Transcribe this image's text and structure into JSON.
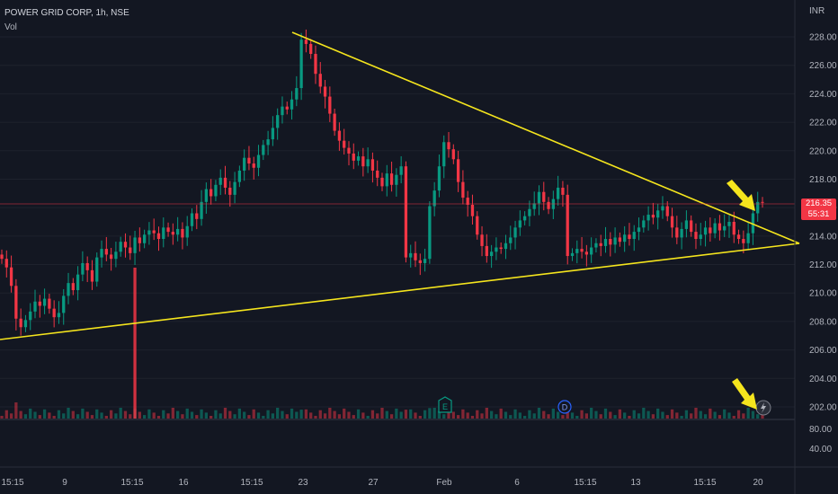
{
  "header": {
    "title": "POWER GRID CORP, 1h, NSE",
    "volume_label": "Vol"
  },
  "price_scale": {
    "currency": "INR",
    "ticks": [
      "228.00",
      "226.00",
      "224.00",
      "222.00",
      "220.00",
      "218.00",
      "216.00",
      "214.00",
      "212.00",
      "210.00",
      "208.00",
      "206.00",
      "204.00",
      "202.00"
    ],
    "volume_ticks": [
      "80.00",
      "40.00"
    ]
  },
  "time_axis": {
    "ticks": [
      "15:15",
      "9",
      "15:15",
      "16",
      "15:15",
      "23",
      "27",
      "Feb",
      "6",
      "15:15",
      "13",
      "15:15",
      "20"
    ]
  },
  "current_price": {
    "price": "216.35",
    "countdown": "55:31"
  },
  "event_markers": [
    "E",
    "D"
  ],
  "colors": {
    "background": "#131722",
    "up": "#089981",
    "down": "#f23645",
    "trendline": "#f5e51d",
    "arrow": "#f5e51d"
  },
  "chart_data": {
    "type": "candlestick",
    "symbol": "POWER GRID CORP",
    "interval": "1h",
    "exchange": "NSE",
    "y_range": [
      201,
      229.5
    ],
    "closes": [
      212.4,
      211.8,
      210.5,
      208.2,
      207.6,
      208.1,
      208.7,
      209.4,
      209.1,
      209.6,
      208.9,
      208.3,
      208.6,
      209.8,
      210.7,
      210.2,
      211.3,
      212.1,
      211.6,
      210.8,
      212.5,
      213.1,
      212.7,
      212.4,
      212.9,
      213.6,
      213.2,
      212.8,
      213.9,
      213.5,
      214.1,
      214.4,
      214.2,
      213.8,
      214.6,
      214.3,
      214.1,
      214.5,
      213.9,
      214.7,
      215.6,
      215.2,
      216.4,
      217.3,
      216.8,
      217.6,
      218.1,
      217.4,
      216.9,
      217.8,
      218.6,
      219.5,
      219.1,
      218.8,
      219.7,
      220.4,
      220.8,
      221.6,
      222.5,
      223.1,
      222.9,
      223.6,
      224.4,
      227.8,
      227.5,
      226.8,
      225.4,
      224.5,
      223.8,
      222.6,
      221.4,
      220.7,
      220.2,
      219.8,
      219.3,
      219.6,
      218.9,
      219.4,
      218.6,
      218.1,
      217.5,
      218.4,
      217.6,
      218.3,
      218.9,
      212.5,
      212.8,
      212.3,
      212.1,
      212.4,
      216.1,
      217.2,
      218.9,
      220.6,
      220.1,
      219.4,
      217.8,
      216.7,
      216.2,
      215.4,
      214.1,
      213.3,
      212.6,
      212.9,
      213.2,
      213.1,
      213.5,
      213.9,
      214.6,
      215.1,
      215.4,
      215.9,
      216.3,
      217.1,
      216.4,
      215.9,
      216.6,
      217.4,
      216.9,
      212.6,
      212.8,
      213.1,
      212.9,
      212.7,
      213.2,
      213.5,
      213.3,
      213.8,
      213.4,
      213.9,
      213.6,
      214.1,
      213.8,
      214.3,
      214.6,
      215.1,
      215.5,
      215.3,
      215.8,
      216.1,
      215.4,
      214.6,
      213.9,
      214.5,
      215.1,
      214.3,
      213.8,
      214.1,
      214.6,
      214.2,
      214.9,
      214.4,
      214.7,
      215.0,
      214.1,
      213.8,
      213.5,
      214.2,
      215.6,
      216.4,
      216.35
    ],
    "trendlines": [
      {
        "from": {
          "bar": 0,
          "price": 206.9
        },
        "to": {
          "bar": 162,
          "price": 213.3
        }
      },
      {
        "from": {
          "bar": 63,
          "price": 228.0
        },
        "to": {
          "bar": 162,
          "price": 213.3
        }
      }
    ],
    "current_price": 216.35
  }
}
